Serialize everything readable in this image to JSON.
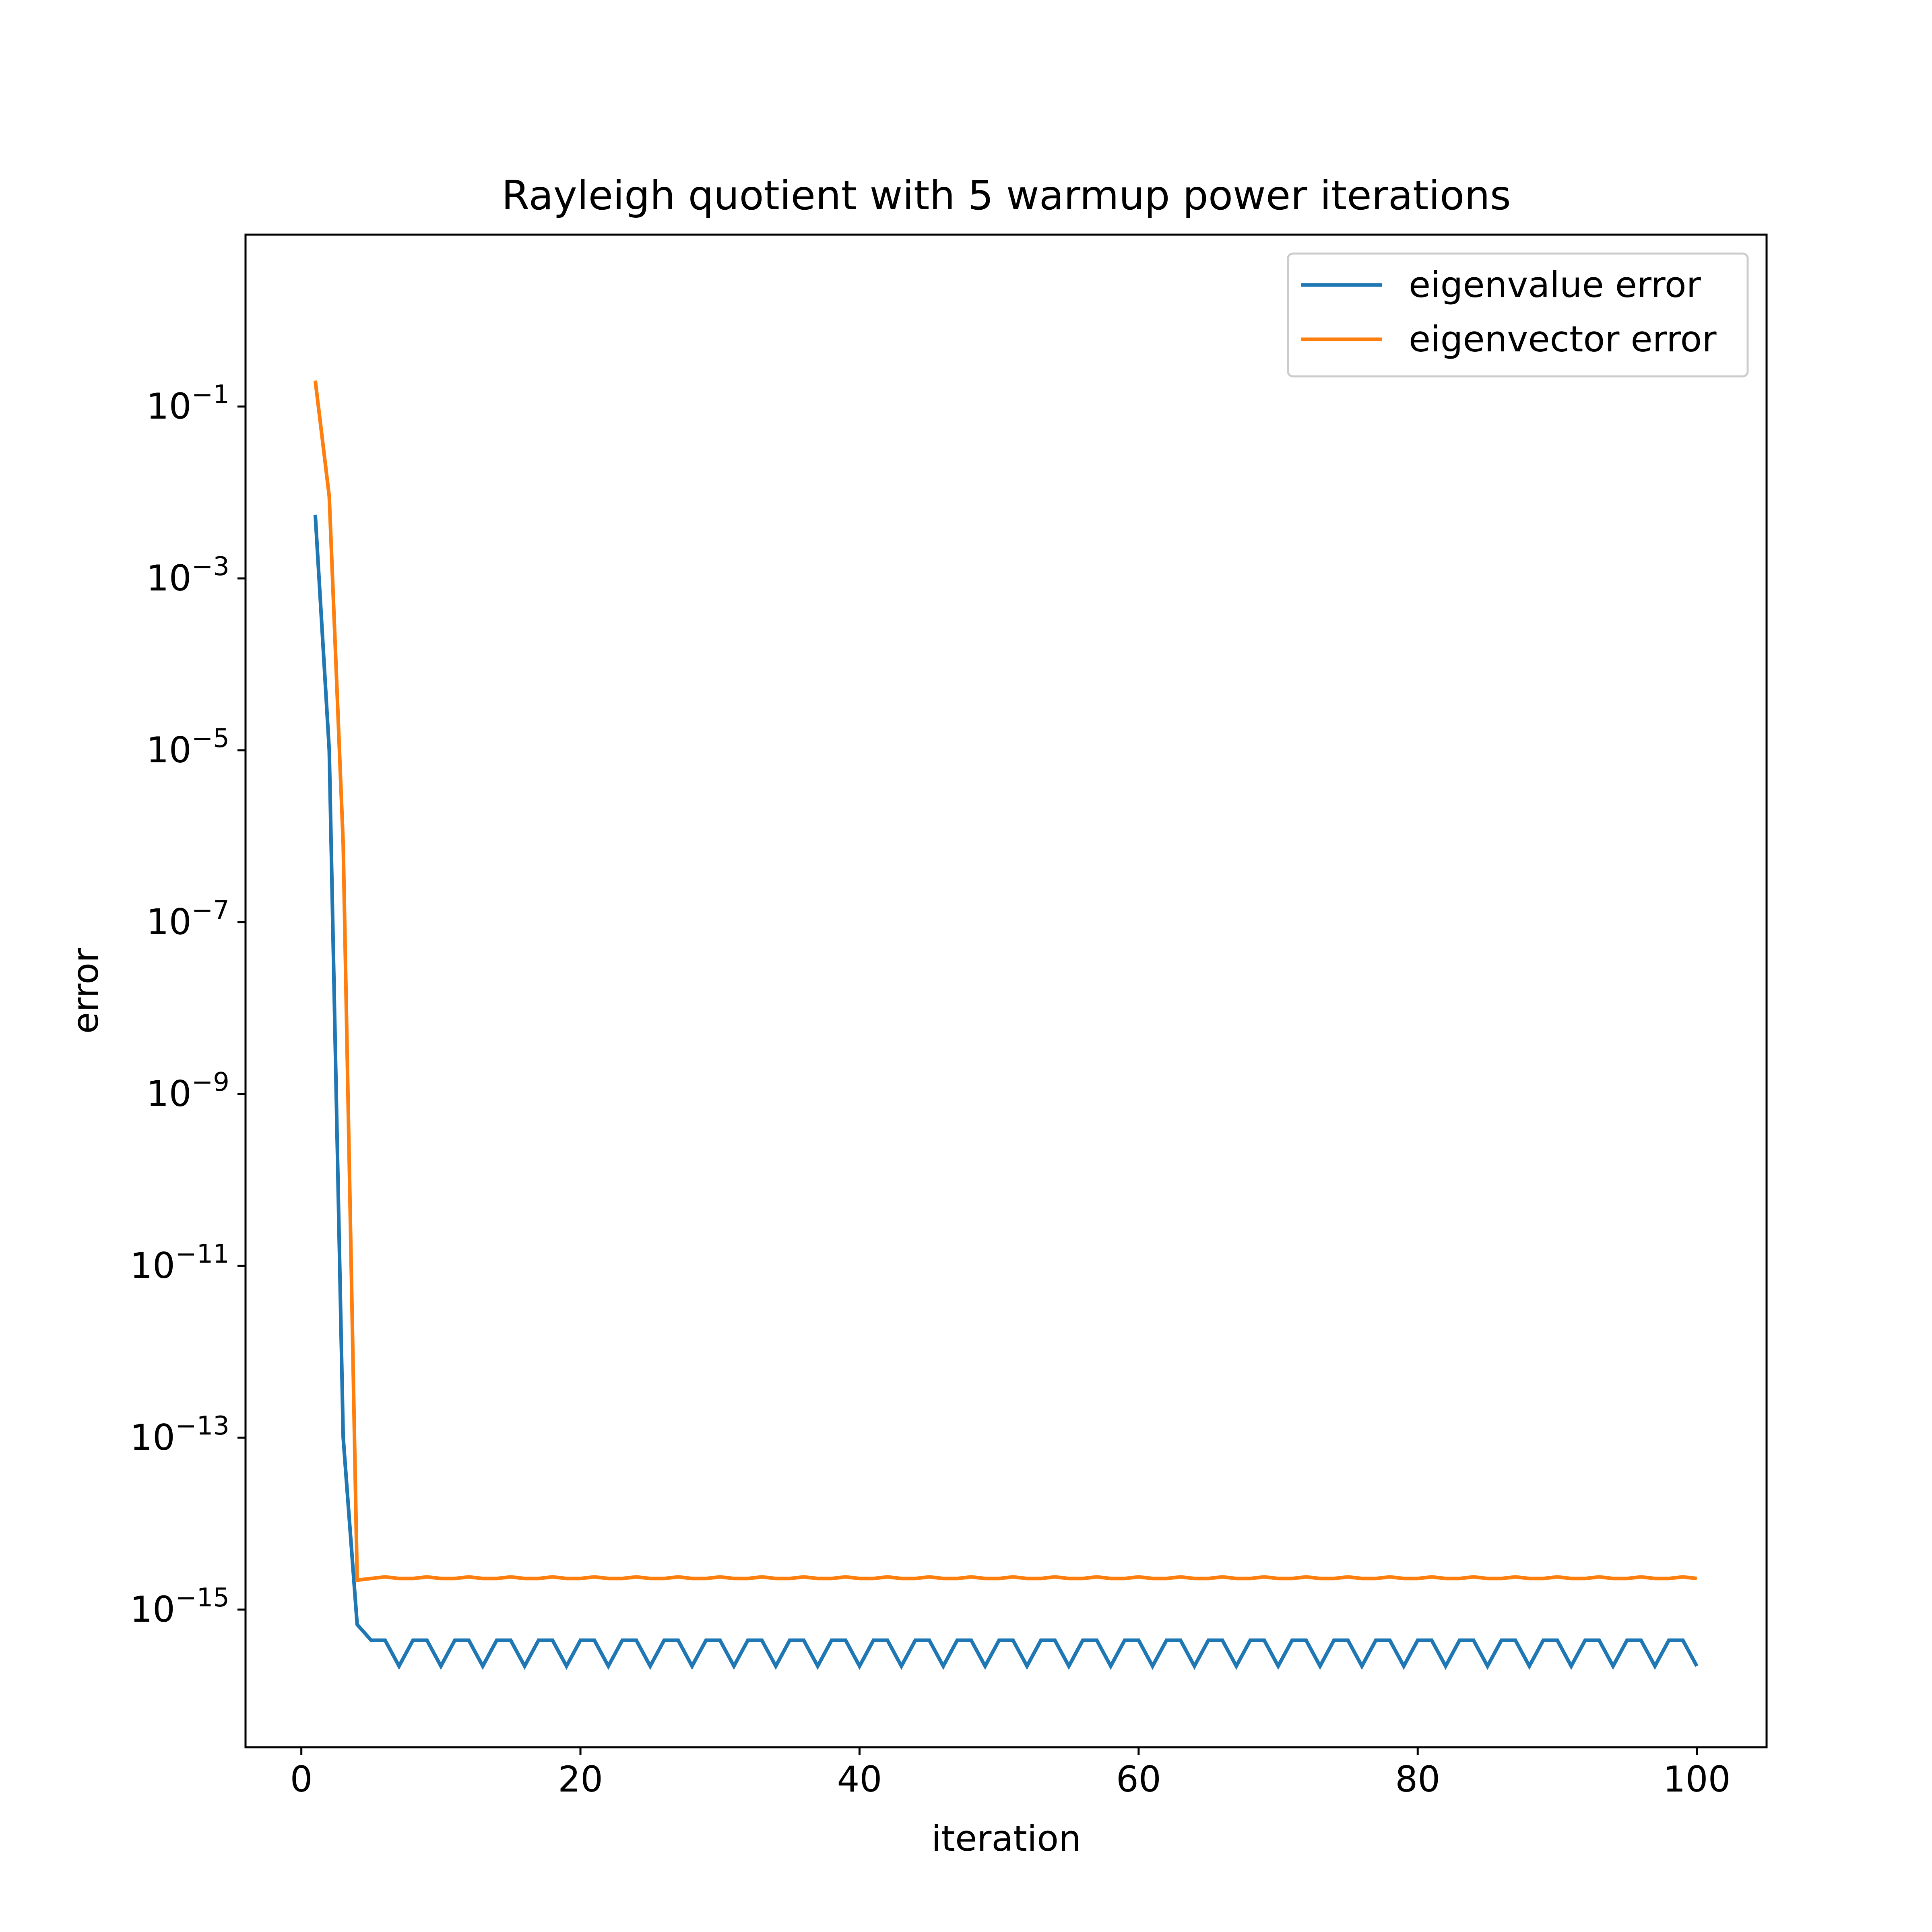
{
  "chart_data": {
    "type": "line",
    "title": "Rayleigh quotient with 5 warmup power iterations",
    "xlabel": "iteration",
    "ylabel": "error",
    "xlim": [
      -4,
      105
    ],
    "ylim": [
      2.5e-17,
      10
    ],
    "yscale": "log",
    "grid": false,
    "legend_placement": "top-right",
    "x_ticks": [
      {
        "value": 0,
        "label": "0"
      },
      {
        "value": 20,
        "label": "20"
      },
      {
        "value": 40,
        "label": "40"
      },
      {
        "value": 60,
        "label": "60"
      },
      {
        "value": 80,
        "label": "80"
      },
      {
        "value": 100,
        "label": "100"
      }
    ],
    "y_ticks": [
      {
        "exp": -1,
        "base": "10",
        "sup": "−1"
      },
      {
        "exp": -3,
        "base": "10",
        "sup": "−3"
      },
      {
        "exp": -5,
        "base": "10",
        "sup": "−5"
      },
      {
        "exp": -7,
        "base": "10",
        "sup": "−7"
      },
      {
        "exp": -9,
        "base": "10",
        "sup": "−9"
      },
      {
        "exp": -11,
        "base": "10",
        "sup": "−11"
      },
      {
        "exp": -13,
        "base": "10",
        "sup": "−13"
      },
      {
        "exp": -15,
        "base": "10",
        "sup": "−15"
      }
    ],
    "series": [
      {
        "name": "eigenvalue error",
        "color": "#1f77b4",
        "x_start": 1,
        "x_step": 1,
        "head": [
          0.0055,
          1e-05,
          1e-13,
          6.7e-16,
          4.4e-16,
          4.4e-16
        ],
        "cycle": [
          2.2e-16,
          4.4e-16,
          4.4e-16
        ],
        "end_x": 100
      },
      {
        "name": "eigenvector error",
        "color": "#ff7f0e",
        "x_start": 1,
        "x_step": 1,
        "head": [
          0.2,
          0.009,
          8e-07,
          2.2e-15
        ],
        "cycle": [
          2.3e-15,
          2.4e-15,
          2.3e-15
        ],
        "end_x": 100
      }
    ]
  }
}
